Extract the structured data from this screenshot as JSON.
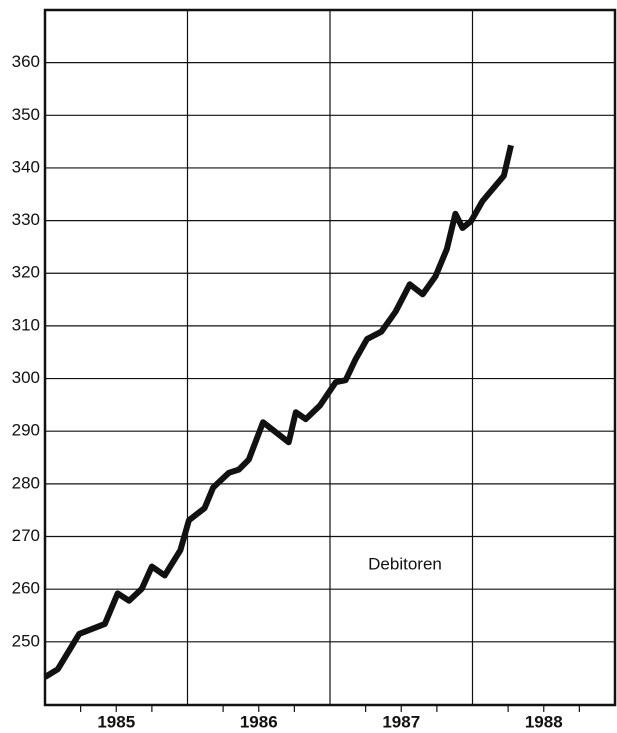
{
  "chart_data": {
    "type": "line",
    "annotation": "Debitoren",
    "x_categories": [
      "1985",
      "1986",
      "1987",
      "1988"
    ],
    "xlim": [
      1985,
      1989
    ],
    "ylim": [
      238,
      370
    ],
    "yticks": [
      250,
      260,
      270,
      280,
      290,
      300,
      310,
      320,
      330,
      340,
      350,
      360
    ],
    "grid": true,
    "series": [
      {
        "name": "Debitoren",
        "color": "#111111",
        "x": [
          1985.0,
          1985.09,
          1985.24,
          1985.42,
          1985.51,
          1985.59,
          1985.68,
          1985.75,
          1985.84,
          1985.95,
          1986.01,
          1986.12,
          1986.18,
          1986.29,
          1986.36,
          1986.43,
          1986.53,
          1986.62,
          1986.71,
          1986.76,
          1986.83,
          1986.93,
          1987.04,
          1987.11,
          1987.18,
          1987.26,
          1987.36,
          1987.46,
          1987.56,
          1987.65,
          1987.74,
          1987.82,
          1987.88,
          1987.93,
          1987.99,
          1988.07,
          1988.22,
          1988.27
        ],
        "values": [
          243.3,
          244.8,
          251.5,
          253.4,
          259.2,
          257.8,
          260.1,
          264.3,
          262.6,
          267.4,
          273.1,
          275.4,
          279.3,
          282.1,
          282.7,
          284.6,
          291.7,
          289.8,
          287.9,
          293.6,
          292.3,
          294.9,
          299.3,
          299.7,
          303.7,
          307.5,
          308.9,
          312.7,
          317.9,
          316.0,
          319.4,
          324.6,
          331.3,
          328.6,
          329.9,
          333.7,
          338.5,
          344.3
        ]
      }
    ]
  }
}
